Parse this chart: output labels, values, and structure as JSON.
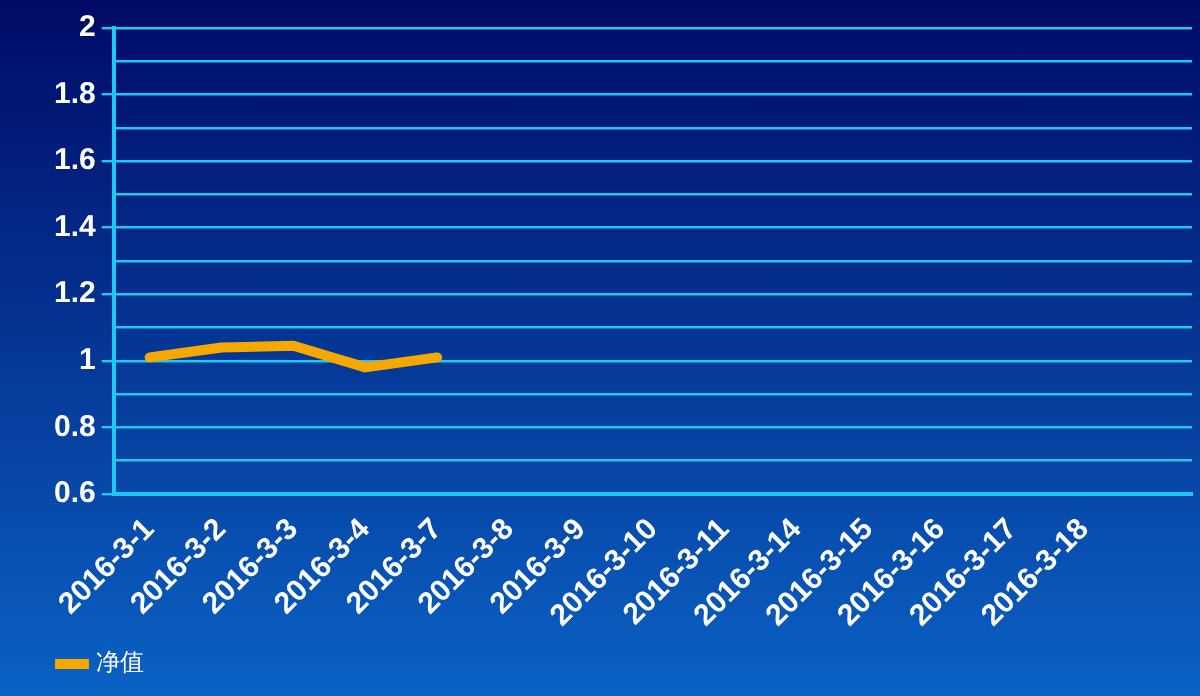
{
  "chart_data": {
    "type": "line",
    "categories": [
      "2016-3-1",
      "2016-3-2",
      "2016-3-3",
      "2016-3-4",
      "2016-3-7",
      "2016-3-8",
      "2016-3-9",
      "2016-3-10",
      "2016-3-11",
      "2016-3-14",
      "2016-3-15",
      "2016-3-16",
      "2016-3-17",
      "2016-3-18",
      null
    ],
    "series": [
      {
        "name": "净值",
        "color": "#f5a800",
        "values": [
          1.01,
          1.04,
          1.045,
          0.98,
          1.01,
          null,
          null,
          null,
          null,
          null,
          null,
          null,
          null,
          null,
          null
        ]
      }
    ],
    "ylim": [
      0.6,
      2
    ],
    "yticks": [
      0.6,
      {
        "value": 0.7,
        "label": null
      },
      0.8,
      {
        "value": 0.9,
        "label": null
      },
      1,
      {
        "value": 1.1,
        "label": null
      },
      1.2,
      {
        "value": 1.3,
        "label": null
      },
      1.4,
      {
        "value": 1.5,
        "label": null
      },
      1.6,
      {
        "value": 1.7,
        "label": null
      },
      1.8,
      {
        "value": 1.9,
        "label": null
      },
      2
    ],
    "grid": "y",
    "legend": "bottom left",
    "marker": "none",
    "line_style": "solid"
  }
}
